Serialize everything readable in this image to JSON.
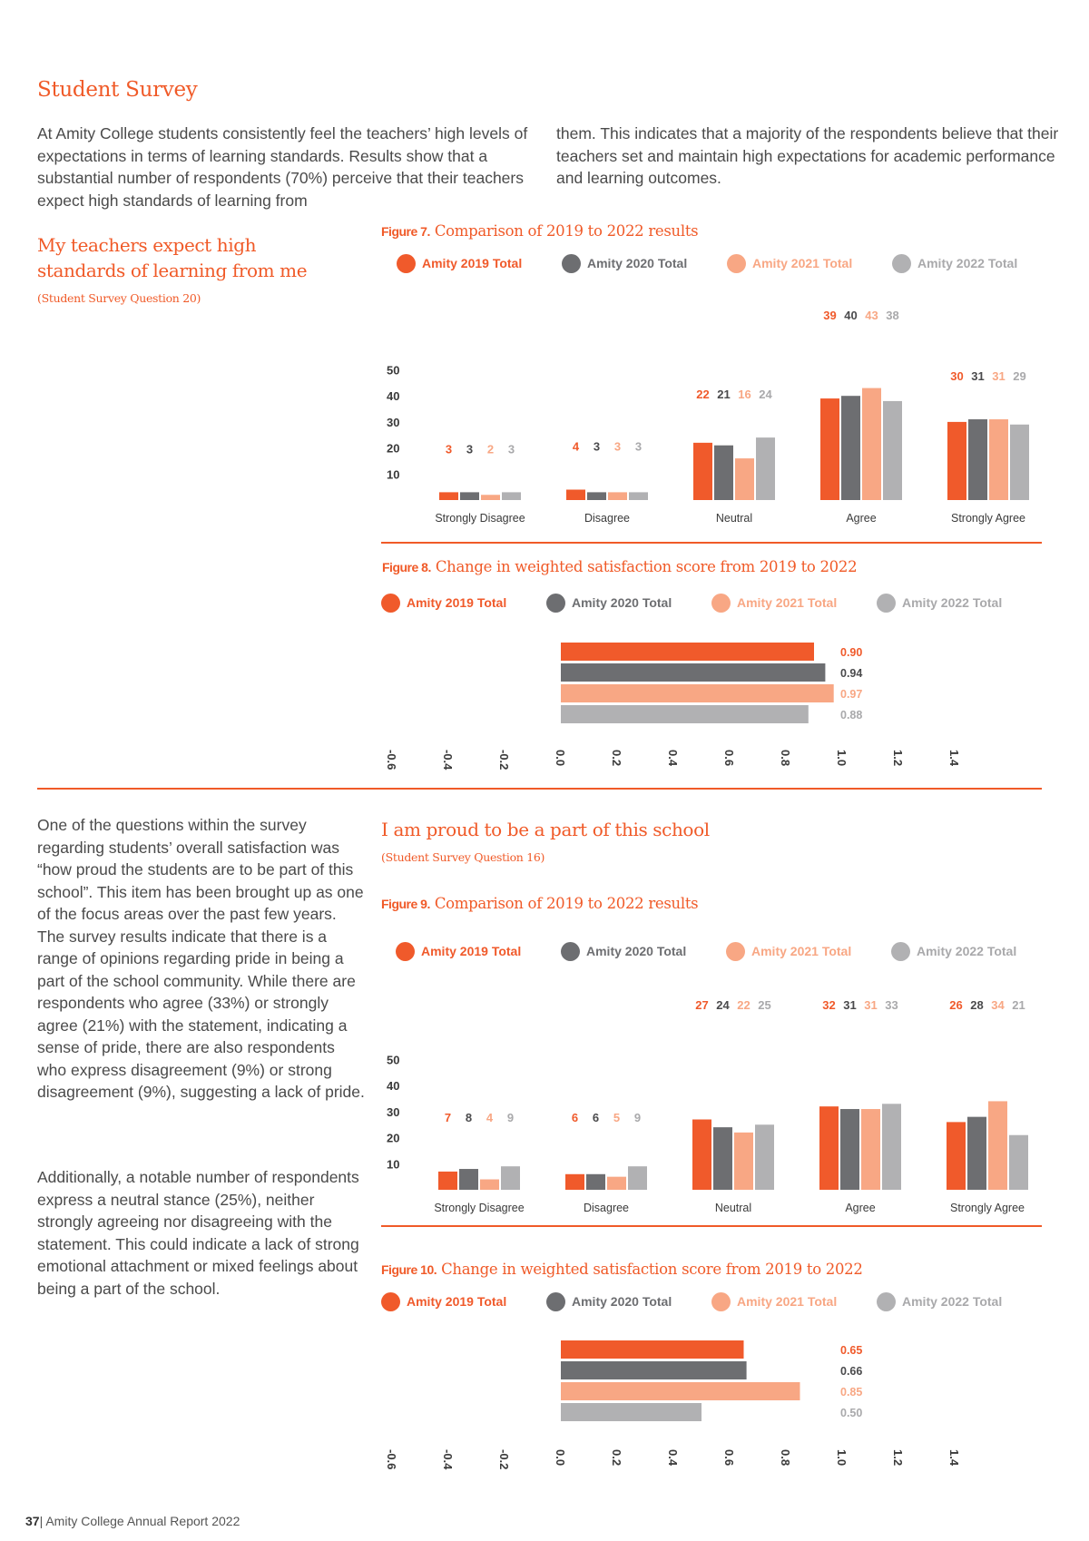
{
  "colors": {
    "accent": "#f05a28",
    "s2019": "#f05a2b",
    "s2020": "#6d6e71",
    "s2021": "#f8a784",
    "s2022": "#b1b1b3"
  },
  "section_title": "Student Survey",
  "intro": {
    "col1": "At Amity College students consistently feel the teachers’ high levels of expectations in terms of learning standards. Results show that a substantial number of respondents (70%) perceive that their teachers expect high standards of learning from",
    "col2": "them. This indicates that a majority of the respondents believe that their teachers set and maintain high expectations for academic performance and learning outcomes."
  },
  "q20": {
    "title": "My teachers expect high standards of learning from me",
    "subtitle": "(Student Survey Question 20)"
  },
  "q16": {
    "title": "I am proud to be a part of this school",
    "subtitle": "(Student Survey Question 16)"
  },
  "legend": [
    "Amity 2019 Total",
    "Amity 2020 Total",
    "Amity 2021 Total",
    "Amity 2022 Total"
  ],
  "body_text": {
    "p1": "One of the questions within the survey regarding students’ overall satisfaction was “how proud the students are to be part of this school”. This item has been brought up as one of the focus areas over the past few years. The survey results indicate that there is a range of opinions regarding pride in being a part of the school community. While there are respondents who agree (33%) or strongly agree (21%) with the statement, indicating a sense of pride, there are also respondents who express disagreement (9%) or strong disagreement (9%), suggesting a lack of pride.",
    "p2": "Additionally, a notable number of respondents express a neutral stance (25%), neither strongly agreeing nor disagreeing with the statement. This could indicate a lack of strong emotional attachment or mixed feelings about being a part of the school."
  },
  "figures": {
    "fig7": {
      "label": "Figure 7.",
      "title": "Comparison of 2019 to 2022 results"
    },
    "fig8": {
      "label": "Figure 8.",
      "title": "Change in weighted satisfaction score from 2019 to 2022"
    },
    "fig9": {
      "label": "Figure 9.",
      "title": "Comparison of 2019 to 2022 results"
    },
    "fig10": {
      "label": "Figure 10.",
      "title": "Change in weighted satisfaction score from 2019 to 2022"
    }
  },
  "footer": {
    "page": "37",
    "text": "| Amity College Annual Report 2022"
  },
  "chart_data": [
    {
      "id": "fig7",
      "type": "bar",
      "categories": [
        "Strongly Disagree",
        "Disagree",
        "Neutral",
        "Agree",
        "Strongly Agree"
      ],
      "y_ticks": [
        10,
        20,
        30,
        40,
        50
      ],
      "series": [
        {
          "name": "Amity 2019 Total",
          "values": [
            3,
            4,
            22,
            39,
            30
          ]
        },
        {
          "name": "Amity 2020 Total",
          "values": [
            3,
            3,
            21,
            40,
            31
          ]
        },
        {
          "name": "Amity 2021 Total",
          "values": [
            2,
            3,
            16,
            43,
            31
          ]
        },
        {
          "name": "Amity 2022 Total",
          "values": [
            3,
            3,
            24,
            38,
            29
          ]
        }
      ]
    },
    {
      "id": "fig8",
      "type": "bar",
      "orientation": "horizontal",
      "x_ticks": [
        "-0.6",
        "-0.4",
        "-0.2",
        "0.0",
        "0.2",
        "0.4",
        "0.6",
        "0.8",
        "1.0",
        "1.2",
        "1.4"
      ],
      "xlim": [
        -0.6,
        1.4
      ],
      "series": [
        {
          "name": "Amity 2019 Total",
          "value": 0.9,
          "label": "0.90"
        },
        {
          "name": "Amity 2020 Total",
          "value": 0.94,
          "label": "0.94"
        },
        {
          "name": "Amity 2021 Total",
          "value": 0.97,
          "label": "0.97"
        },
        {
          "name": "Amity 2022 Total",
          "value": 0.88,
          "label": "0.88"
        }
      ]
    },
    {
      "id": "fig9",
      "type": "bar",
      "categories": [
        "Strongly Disagree",
        "Disagree",
        "Neutral",
        "Agree",
        "Strongly Agree"
      ],
      "y_ticks": [
        10,
        20,
        30,
        40,
        50
      ],
      "series": [
        {
          "name": "Amity 2019 Total",
          "values": [
            7,
            6,
            27,
            32,
            26
          ]
        },
        {
          "name": "Amity 2020 Total",
          "values": [
            8,
            6,
            24,
            31,
            28
          ]
        },
        {
          "name": "Amity 2021 Total",
          "values": [
            4,
            5,
            22,
            31,
            34
          ]
        },
        {
          "name": "Amity 2022 Total",
          "values": [
            9,
            9,
            25,
            33,
            21
          ]
        }
      ]
    },
    {
      "id": "fig10",
      "type": "bar",
      "orientation": "horizontal",
      "x_ticks": [
        "-0.6",
        "-0.4",
        "-0.2",
        "0.0",
        "0.2",
        "0.4",
        "0.6",
        "0.8",
        "1.0",
        "1.2",
        "1.4"
      ],
      "xlim": [
        -0.6,
        1.4
      ],
      "series": [
        {
          "name": "Amity 2019 Total",
          "value": 0.65,
          "label": "0.65"
        },
        {
          "name": "Amity 2020 Total",
          "value": 0.66,
          "label": "0.66"
        },
        {
          "name": "Amity 2021 Total",
          "value": 0.85,
          "label": "0.85"
        },
        {
          "name": "Amity 2022 Total",
          "value": 0.5,
          "label": "0.50"
        }
      ]
    }
  ]
}
